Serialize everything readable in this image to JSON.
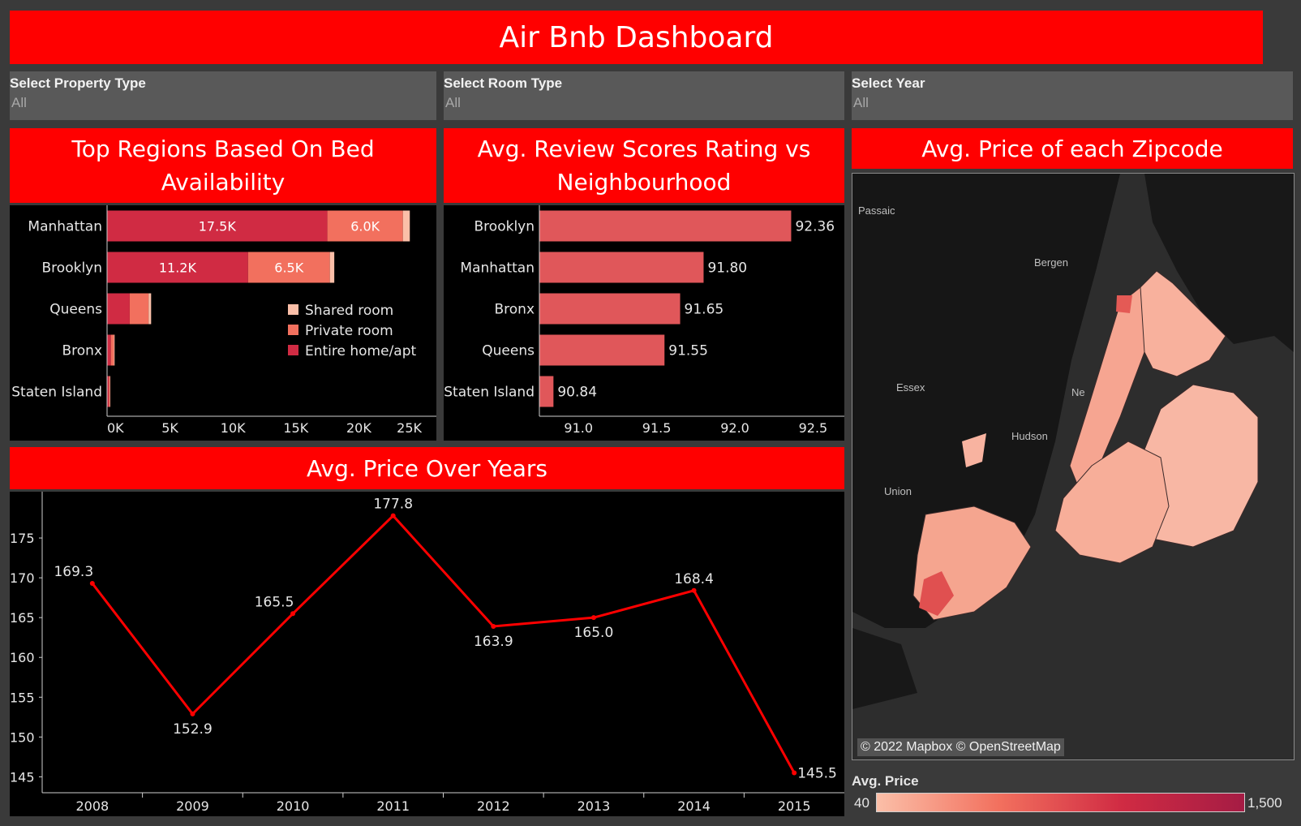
{
  "dashboard_title": "Air Bnb Dashboard",
  "filters": [
    {
      "label": "Select Property Type",
      "value": "All"
    },
    {
      "label": "Select Room Type",
      "value": "All"
    },
    {
      "label": "Select Year",
      "value": "All"
    }
  ],
  "panels": {
    "beds": {
      "title_line1": "Top Regions Based On Bed",
      "title_line2": "Availability"
    },
    "review": {
      "title_line1": "Avg. Review Scores Rating vs",
      "title_line2": "Neighbourhood"
    },
    "map": {
      "title": "Avg. Price of each Zipcode"
    },
    "years": {
      "title": "Avg. Price Over Years"
    }
  },
  "colors": {
    "accent": "#ff0000",
    "entire_home": "#d02b43",
    "private_room": "#f2705e",
    "shared_room": "#fbbfa8",
    "review_bar": "#e0575a",
    "line": "#ff0000"
  },
  "map": {
    "attribution": "© 2022 Mapbox © OpenStreetMap",
    "places": [
      "Passaic",
      "Bergen",
      "Essex",
      "Hudson",
      "Union",
      "Ne"
    ],
    "legend_title": "Avg. Price",
    "legend_min": "40",
    "legend_max": "1,500"
  },
  "chart_data": [
    {
      "type": "bar",
      "orientation": "horizontal",
      "stacked": true,
      "title": "Top Regions Based On Bed Availability",
      "categories": [
        "Manhattan",
        "Brooklyn",
        "Queens",
        "Bronx",
        "Staten Island"
      ],
      "series": [
        {
          "name": "Entire home/apt",
          "values": [
            17500,
            11200,
            1800,
            300,
            150
          ]
        },
        {
          "name": "Private room",
          "values": [
            6000,
            6500,
            1500,
            250,
            80
          ]
        },
        {
          "name": "Shared room",
          "values": [
            550,
            350,
            200,
            50,
            30
          ]
        }
      ],
      "data_labels": {
        "Entire home/apt": [
          "17.5K",
          "11.2K",
          "",
          "",
          ""
        ],
        "Private room": [
          "6.0K",
          "6.5K",
          "",
          "",
          ""
        ]
      },
      "xlim": [
        0,
        25000
      ],
      "xticks": [
        "0K",
        "5K",
        "10K",
        "15K",
        "20K",
        "25K"
      ],
      "xtick_values": [
        0,
        5000,
        10000,
        15000,
        20000,
        25000
      ],
      "legend": [
        "Shared room",
        "Private room",
        "Entire home/apt"
      ],
      "legend_placement": "right-middle"
    },
    {
      "type": "bar",
      "orientation": "horizontal",
      "title": "Avg. Review Scores Rating vs Neighbourhood",
      "categories": [
        "Brooklyn",
        "Manhattan",
        "Bronx",
        "Queens",
        "Staten Island"
      ],
      "values": [
        92.36,
        91.8,
        91.65,
        91.55,
        90.84
      ],
      "value_labels": [
        "92.36",
        "91.80",
        "91.65",
        "91.55",
        "90.84"
      ],
      "xlim": [
        90.75,
        92.7
      ],
      "xticks": [
        "91.0",
        "91.5",
        "92.0",
        "92.5"
      ],
      "xtick_values": [
        91.0,
        91.5,
        92.0,
        92.5
      ]
    },
    {
      "type": "line",
      "title": "Avg. Price Over Years",
      "x": [
        "2008",
        "2009",
        "2010",
        "2011",
        "2012",
        "2013",
        "2014",
        "2015"
      ],
      "values": [
        169.3,
        152.9,
        165.5,
        177.8,
        163.9,
        165.0,
        168.4,
        145.5
      ],
      "value_labels": [
        "169.3",
        "152.9",
        "165.5",
        "177.8",
        "163.9",
        "165.0",
        "168.4",
        "145.5"
      ],
      "ylim": [
        143,
        180
      ],
      "yticks": [
        "145",
        "150",
        "155",
        "160",
        "165",
        "170",
        "175"
      ],
      "ytick_values": [
        145,
        150,
        155,
        160,
        165,
        170,
        175
      ]
    }
  ]
}
